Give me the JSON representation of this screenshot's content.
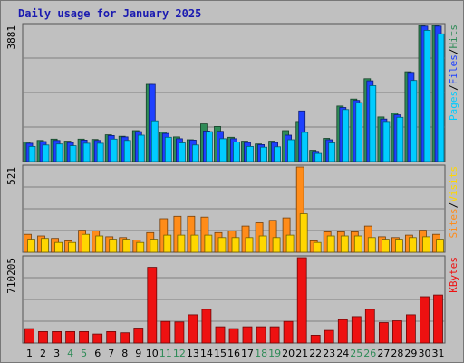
{
  "chart_data": {
    "title": "Daily usage for January 2025",
    "type": "bar",
    "categories": [
      "1",
      "2",
      "3",
      "4",
      "5",
      "6",
      "7",
      "8",
      "9",
      "10",
      "11",
      "12",
      "13",
      "14",
      "15",
      "16",
      "17",
      "18",
      "19",
      "20",
      "21",
      "22",
      "23",
      "24",
      "25",
      "26",
      "27",
      "28",
      "29",
      "30",
      "31"
    ],
    "weekend_days": [
      "4",
      "5",
      "11",
      "12",
      "18",
      "19",
      "25",
      "26"
    ],
    "panels": [
      {
        "name": "hits-files-pages",
        "ymax_label": "3881",
        "ymax": 3881,
        "legend": [
          "Pages",
          "/",
          "Files",
          "/",
          "Hits"
        ],
        "series": [
          {
            "name": "Hits",
            "color": "#2e8b57",
            "values": [
              560,
              600,
              640,
              580,
              640,
              630,
              760,
              720,
              880,
              2200,
              840,
              700,
              620,
              1070,
              1000,
              690,
              580,
              500,
              580,
              880,
              1140,
              320,
              660,
              1580,
              1780,
              2360,
              1270,
              1380,
              2560,
              3880,
              3880
            ]
          },
          {
            "name": "Files",
            "color": "#1e40ff",
            "values": [
              520,
              570,
              600,
              540,
              610,
              600,
              740,
              700,
              850,
              2200,
              800,
              650,
              610,
              870,
              860,
              650,
              540,
              480,
              540,
              750,
              1440,
              290,
              620,
              1540,
              1740,
              2300,
              1210,
              1330,
              2540,
              3860,
              3860
            ]
          },
          {
            "name": "Pages",
            "color": "#00ccff",
            "values": [
              430,
              470,
              500,
              450,
              520,
              520,
              640,
              600,
              750,
              1160,
              690,
              530,
              470,
              850,
              650,
              560,
              430,
              410,
              420,
              620,
              830,
              230,
              530,
              1480,
              1680,
              2160,
              1140,
              1260,
              2310,
              3740,
              3640
            ]
          }
        ]
      },
      {
        "name": "visits-sites",
        "ymax_label": "521",
        "ymax": 521,
        "legend": [
          "Sites",
          "/",
          "Visits"
        ],
        "series": [
          {
            "name": "Visits",
            "color": "#ff8c1a",
            "values": [
              110,
              100,
              85,
              70,
              135,
              130,
              95,
              90,
              75,
              120,
              205,
              220,
              220,
              215,
              120,
              130,
              160,
              180,
              195,
              210,
              521,
              70,
              125,
              125,
              125,
              160,
              95,
              90,
              105,
              135,
              110
            ]
          },
          {
            "name": "Sites",
            "color": "#ffd700",
            "values": [
              80,
              85,
              60,
              60,
              110,
              100,
              80,
              80,
              60,
              80,
              105,
              105,
              105,
              105,
              90,
              90,
              90,
              100,
              90,
              105,
              235,
              60,
              100,
              100,
              100,
              90,
              80,
              80,
              90,
              95,
              80
            ]
          }
        ]
      },
      {
        "name": "kbytes",
        "ymax_label": "710205",
        "ymax": 710205,
        "legend": [
          "KBytes"
        ],
        "series": [
          {
            "name": "KBytes",
            "color": "#ee1111",
            "values": [
              120000,
              95000,
              95000,
              95000,
              95000,
              75000,
              95000,
              85000,
              125000,
              630000,
              180000,
              175000,
              235000,
              280000,
              135000,
              120000,
              135000,
              135000,
              135000,
              180000,
              710205,
              65000,
              105000,
              195000,
              220000,
              280000,
              170000,
              185000,
              235000,
              385000,
              400000
            ]
          }
        ]
      }
    ]
  }
}
